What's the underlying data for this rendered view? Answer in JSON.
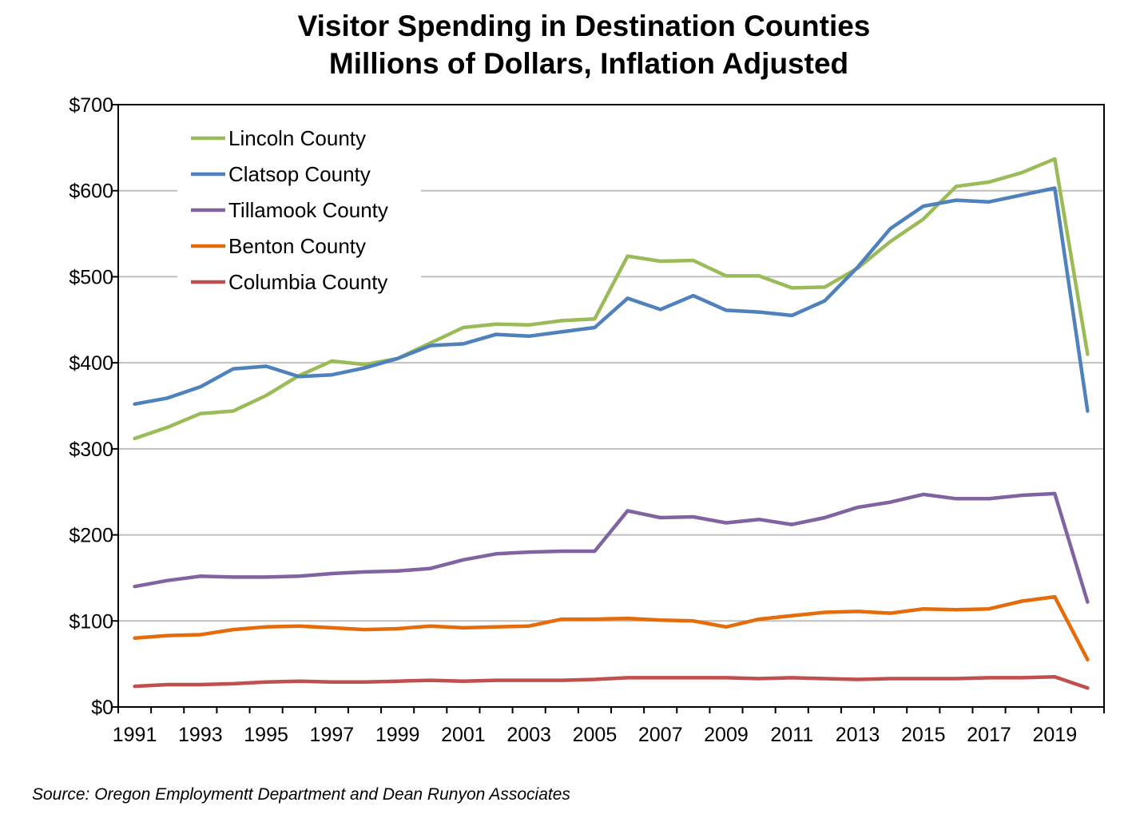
{
  "chart_data": {
    "type": "line",
    "title": "Visitor Spending in Destination Counties",
    "subtitle": "Millions of Dollars, Inflation Adjusted",
    "source": "Source: Oregon Employmentt Department and Dean Runyon Associates",
    "x": [
      1991,
      1992,
      1993,
      1994,
      1995,
      1996,
      1997,
      1998,
      1999,
      2000,
      2001,
      2002,
      2003,
      2004,
      2005,
      2006,
      2007,
      2008,
      2009,
      2010,
      2011,
      2012,
      2013,
      2014,
      2015,
      2016,
      2017,
      2018,
      2019,
      2020
    ],
    "x_tick_labels": [
      "1991",
      "1993",
      "1995",
      "1997",
      "1999",
      "2001",
      "2003",
      "2005",
      "2007",
      "2009",
      "2011",
      "2013",
      "2015",
      "2017",
      "2019"
    ],
    "ylim": [
      0,
      700
    ],
    "y_ticks": [
      0,
      100,
      200,
      300,
      400,
      500,
      600,
      700
    ],
    "y_tick_labels": [
      "$0",
      "$100",
      "$200",
      "$300",
      "$400",
      "$500",
      "$600",
      "$700"
    ],
    "grid": "horizontal",
    "legend_position": "top-left",
    "series": [
      {
        "name": "Lincoln County",
        "color": "#9BBB59",
        "values": [
          312,
          325,
          341,
          344,
          362,
          385,
          402,
          398,
          405,
          423,
          441,
          445,
          444,
          449,
          451,
          524,
          518,
          519,
          501,
          501,
          487,
          488,
          510,
          541,
          567,
          605,
          610,
          621,
          637,
          410
        ]
      },
      {
        "name": "Clatsop County",
        "color": "#4F81BD",
        "values": [
          352,
          359,
          372,
          393,
          396,
          384,
          386,
          394,
          405,
          420,
          422,
          433,
          431,
          436,
          441,
          475,
          462,
          478,
          461,
          459,
          455,
          472,
          511,
          556,
          582,
          589,
          587,
          595,
          603,
          344
        ]
      },
      {
        "name": "Tillamook County",
        "color": "#8064A2",
        "values": [
          140,
          147,
          152,
          151,
          151,
          152,
          155,
          157,
          158,
          161,
          171,
          178,
          180,
          181,
          181,
          228,
          220,
          221,
          214,
          218,
          212,
          220,
          232,
          238,
          247,
          242,
          242,
          246,
          248,
          122
        ]
      },
      {
        "name": "Benton County",
        "color": "#E46C0A",
        "values": [
          80,
          83,
          84,
          90,
          93,
          94,
          92,
          90,
          91,
          94,
          92,
          93,
          94,
          102,
          102,
          103,
          101,
          100,
          93,
          102,
          106,
          110,
          111,
          109,
          114,
          113,
          114,
          123,
          128,
          55
        ]
      },
      {
        "name": "Columbia County",
        "color": "#C0504D",
        "values": [
          24,
          26,
          26,
          27,
          29,
          30,
          29,
          29,
          30,
          31,
          30,
          31,
          31,
          31,
          32,
          34,
          34,
          34,
          34,
          33,
          34,
          33,
          32,
          33,
          33,
          33,
          34,
          34,
          35,
          22
        ]
      }
    ]
  }
}
